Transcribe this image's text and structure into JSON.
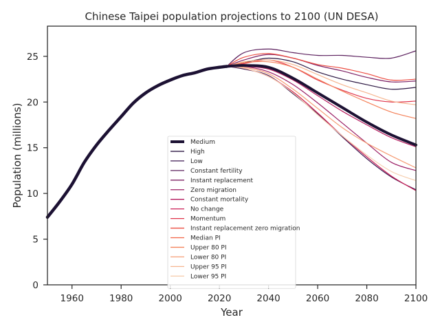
{
  "chart_data": {
    "type": "line",
    "title": "Chinese Taipei population projections to 2100 (UN DESA)",
    "xlabel": "Year",
    "ylabel": "Population (millions)",
    "xlim": [
      1950,
      2100
    ],
    "ylim": [
      0,
      28.3
    ],
    "xticks": [
      1960,
      1980,
      2000,
      2020,
      2040,
      2060,
      2080,
      2100
    ],
    "yticks": [
      0,
      5,
      10,
      15,
      20,
      25
    ],
    "grid": false,
    "legend_position": "lower-center",
    "historical": {
      "x": [
        1950,
        1955,
        1960,
        1965,
        1970,
        1975,
        1980,
        1985,
        1990,
        1995,
        2000,
        2005,
        2010,
        2015,
        2020,
        2023
      ],
      "y": [
        7.4,
        9.1,
        11.0,
        13.4,
        15.3,
        16.9,
        18.4,
        19.9,
        21.0,
        21.8,
        22.4,
        22.9,
        23.2,
        23.6,
        23.8,
        23.9
      ]
    },
    "projection_x": [
      2023,
      2030,
      2040,
      2050,
      2060,
      2070,
      2080,
      2090,
      2100
    ],
    "series": [
      {
        "name": "Medium",
        "color": "#1c1133",
        "values": [
          23.9,
          24.0,
          23.8,
          22.6,
          21.0,
          19.4,
          17.8,
          16.4,
          15.3
        ]
      },
      {
        "name": "High",
        "color": "#2a1540",
        "values": [
          23.9,
          24.3,
          24.8,
          24.4,
          23.3,
          22.5,
          21.9,
          21.4,
          21.6
        ]
      },
      {
        "name": "Low",
        "color": "#3e1a52",
        "values": [
          23.9,
          23.6,
          22.9,
          20.9,
          18.7,
          16.2,
          13.8,
          11.8,
          10.4
        ]
      },
      {
        "name": "Constant fertility",
        "color": "#5a1e5c",
        "values": [
          23.9,
          25.4,
          25.8,
          25.4,
          25.1,
          25.1,
          24.9,
          24.8,
          25.6
        ]
      },
      {
        "name": "Instant replacement",
        "color": "#7b1f63",
        "values": [
          23.9,
          24.6,
          25.2,
          24.8,
          24.0,
          23.4,
          22.7,
          22.2,
          22.3
        ]
      },
      {
        "name": "Zero migration",
        "color": "#9a1c63",
        "values": [
          23.9,
          23.9,
          23.3,
          21.9,
          19.9,
          17.7,
          15.5,
          13.4,
          12.5
        ]
      },
      {
        "name": "Constant mortality",
        "color": "#b51a5e",
        "values": [
          23.9,
          23.9,
          23.6,
          22.4,
          20.7,
          19.0,
          17.5,
          16.1,
          15.1
        ]
      },
      {
        "name": "No change",
        "color": "#cc1f57",
        "values": [
          23.9,
          23.7,
          22.8,
          21.1,
          18.8,
          16.3,
          14.0,
          11.9,
          10.3
        ]
      },
      {
        "name": "Momentum",
        "color": "#e0334a",
        "values": [
          23.9,
          24.2,
          24.6,
          23.8,
          22.4,
          21.3,
          20.4,
          20.0,
          20.1
        ]
      },
      {
        "name": "Instant replacement zero migration",
        "color": "#ec4a3f",
        "values": [
          23.9,
          24.9,
          25.3,
          24.8,
          24.1,
          23.7,
          23.1,
          22.4,
          22.5
        ]
      },
      {
        "name": "Median PI",
        "color": "#f26344",
        "values": [
          23.9,
          24.0,
          23.7,
          22.6,
          21.0,
          19.3,
          17.8,
          16.4,
          15.4
        ]
      },
      {
        "name": "Upper 80 PI",
        "color": "#f4825a",
        "values": [
          23.9,
          24.3,
          24.4,
          23.8,
          22.5,
          21.2,
          20.0,
          18.9,
          18.2
        ]
      },
      {
        "name": "Lower 80 PI",
        "color": "#f69b73",
        "values": [
          23.9,
          23.8,
          23.1,
          21.4,
          19.3,
          17.2,
          15.5,
          14.1,
          12.8
        ]
      },
      {
        "name": "Upper 95 PI",
        "color": "#f6b58f",
        "values": [
          23.9,
          24.4,
          24.6,
          24.1,
          23.0,
          21.9,
          21.0,
          20.1,
          19.7
        ]
      },
      {
        "name": "Lower 95 PI",
        "color": "#f6cfb0",
        "values": [
          23.9,
          23.7,
          22.8,
          21.0,
          18.6,
          16.3,
          14.2,
          12.4,
          11.4
        ]
      }
    ]
  }
}
